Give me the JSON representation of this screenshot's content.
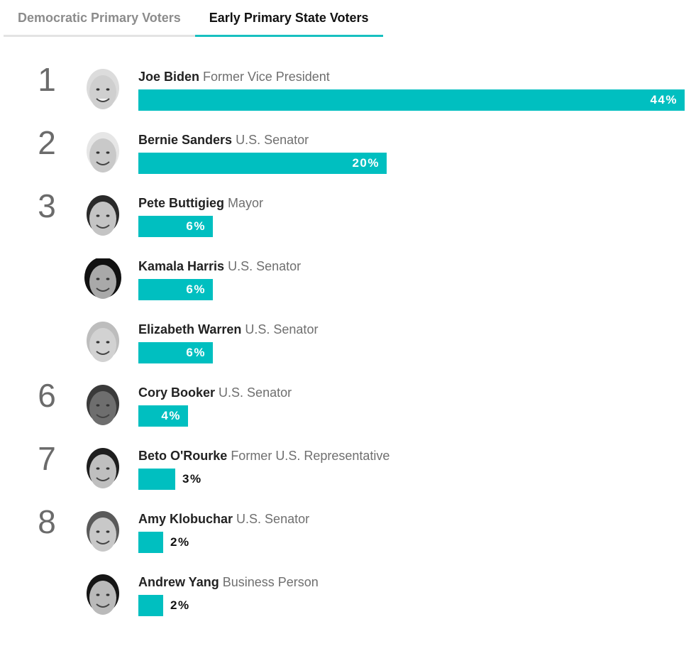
{
  "tabs": [
    {
      "label": "Democratic Primary Voters",
      "active": false
    },
    {
      "label": "Early Primary State Voters",
      "active": true
    }
  ],
  "accent_color": "#00bfc0",
  "chart_data": {
    "type": "bar",
    "orientation": "horizontal",
    "value_suffix": "%",
    "xlim": [
      0,
      44
    ],
    "rows": [
      {
        "rank": "1",
        "name": "Joe Biden",
        "title": "Former Vice President",
        "value": 44,
        "label": "44%"
      },
      {
        "rank": "2",
        "name": "Bernie Sanders",
        "title": "U.S. Senator",
        "value": 20,
        "label": "20%"
      },
      {
        "rank": "3",
        "name": "Pete Buttigieg",
        "title": "Mayor",
        "value": 6,
        "label": "6%"
      },
      {
        "rank": "",
        "name": "Kamala Harris",
        "title": "U.S. Senator",
        "value": 6,
        "label": "6%"
      },
      {
        "rank": "",
        "name": "Elizabeth Warren",
        "title": "U.S. Senator",
        "value": 6,
        "label": "6%"
      },
      {
        "rank": "6",
        "name": "Cory Booker",
        "title": "U.S. Senator",
        "value": 4,
        "label": "4%"
      },
      {
        "rank": "7",
        "name": "Beto O'Rourke",
        "title": "Former U.S. Representative",
        "value": 3,
        "label": "3%"
      },
      {
        "rank": "8",
        "name": "Amy Klobuchar",
        "title": "U.S. Senator",
        "value": 2,
        "label": "2%"
      },
      {
        "rank": "",
        "name": "Andrew Yang",
        "title": "Business Person",
        "value": 2,
        "label": "2%"
      }
    ]
  }
}
